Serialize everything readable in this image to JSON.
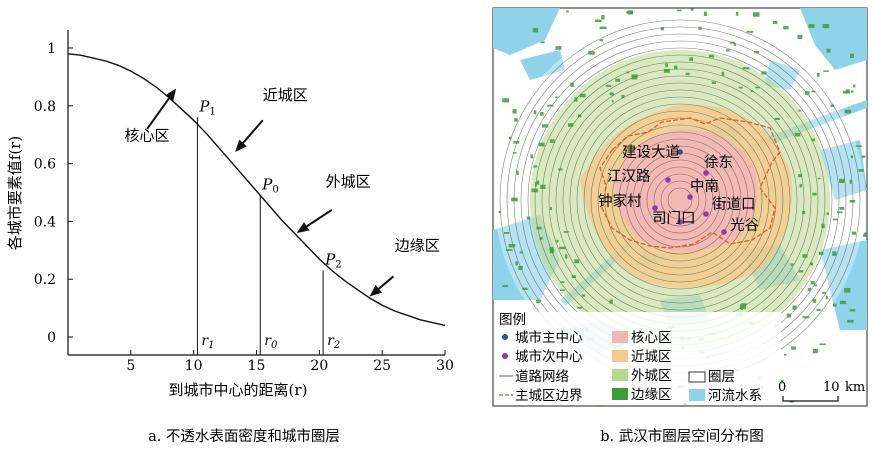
{
  "chart_data": {
    "type": "line",
    "x": [
      0,
      1,
      2,
      3,
      4,
      5,
      6,
      7,
      8,
      9,
      10,
      11,
      12,
      13,
      14,
      15,
      16,
      17,
      18,
      19,
      20,
      21,
      22,
      23,
      24,
      25,
      26,
      27,
      28,
      29,
      30
    ],
    "y": [
      0.98,
      0.975,
      0.965,
      0.955,
      0.94,
      0.92,
      0.895,
      0.865,
      0.83,
      0.79,
      0.75,
      0.705,
      0.655,
      0.605,
      0.555,
      0.505,
      0.455,
      0.405,
      0.36,
      0.315,
      0.27,
      0.23,
      0.195,
      0.165,
      0.135,
      0.11,
      0.09,
      0.075,
      0.06,
      0.05,
      0.04
    ],
    "xlim": [
      0,
      30
    ],
    "ylim": [
      0,
      1
    ],
    "xticks": [
      "5",
      "10",
      "15",
      "20",
      "25",
      "30"
    ],
    "yticks": [
      "0",
      "0.2",
      "0.4",
      "0.6",
      "0.8",
      "1"
    ],
    "xlabel": "到城市中心的距离(r)",
    "ylabel": "各城市要素值f(r)",
    "vlines": [
      {
        "x": 10.3,
        "y": 0.76,
        "label": "r1",
        "point": "P1"
      },
      {
        "x": 15.3,
        "y": 0.49,
        "label": "r0",
        "point": "P0"
      },
      {
        "x": 20.3,
        "y": 0.23,
        "label": "r2",
        "point": "P2"
      }
    ],
    "zones": [
      {
        "label": "核心区",
        "x": 4.5,
        "y": 0.68
      },
      {
        "label": "近城区",
        "x": 15.5,
        "y": 0.82
      },
      {
        "label": "外城区",
        "x": 20.5,
        "y": 0.52
      },
      {
        "label": "边缘区",
        "x": 26,
        "y": 0.3
      }
    ]
  },
  "captions": {
    "left": "a. 不透水表面密度和城市圈层",
    "right": "b. 武汉市圈层空间分布图"
  },
  "map": {
    "centers_main": [
      "建设大道",
      "江汉路",
      "徐东",
      "中南",
      "钟家村",
      "司门口",
      "街道口",
      "光谷"
    ],
    "legend_title": "图例",
    "legend_items": {
      "main_center": "城市主中心",
      "sub_center": "城市次中心",
      "road": "道路网络",
      "boundary": "主城区边界",
      "core": "核心区",
      "near": "近城区",
      "outer": "外城区",
      "edge": "边缘区",
      "ring": "圈层",
      "water": "河流水系"
    },
    "scale_zero": "0",
    "scale_ten": "10",
    "scale_unit": "km",
    "colors": {
      "core": "#f2b6b8",
      "near": "#f5c98a",
      "outer": "#b9d88e",
      "edge": "#3f9a3a",
      "water": "#8fd3ea",
      "boundary": "#e05a2b",
      "main_center": "#2f4ea8",
      "sub_center": "#8a3bb0"
    }
  }
}
